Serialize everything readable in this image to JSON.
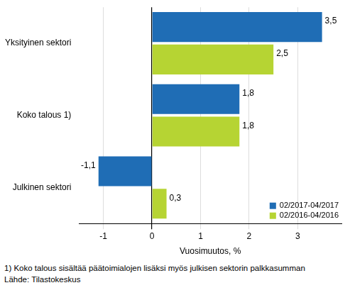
{
  "chart_data": {
    "type": "bar",
    "orientation": "horizontal",
    "categories": [
      "Yksityinen sektori",
      "Koko talous 1)",
      "Julkinen sektori"
    ],
    "series": [
      {
        "name": "02/2017-04/2017",
        "color": "#1f6db5",
        "values": [
          3.5,
          1.8,
          -1.1
        ],
        "value_labels": [
          "3,5",
          "1,8",
          "-1,1"
        ]
      },
      {
        "name": "02/2016-04/2016",
        "color": "#b6d433",
        "values": [
          2.5,
          1.8,
          0.3
        ],
        "value_labels": [
          "2,5",
          "1,8",
          "0,3"
        ]
      }
    ],
    "xlabel": "Vuosimuutos, %",
    "xlim": [
      -1.5,
      3.9
    ],
    "xticks": [
      -1,
      0,
      1,
      2,
      3
    ],
    "grid": true,
    "legend": "lower right",
    "data_labels": true,
    "annotations": [
      "1) Koko talous sisältää päätoimialojen lisäksi myös julkisen sektorin palkkasumman",
      "Lähde: Tilastokeskus"
    ]
  }
}
